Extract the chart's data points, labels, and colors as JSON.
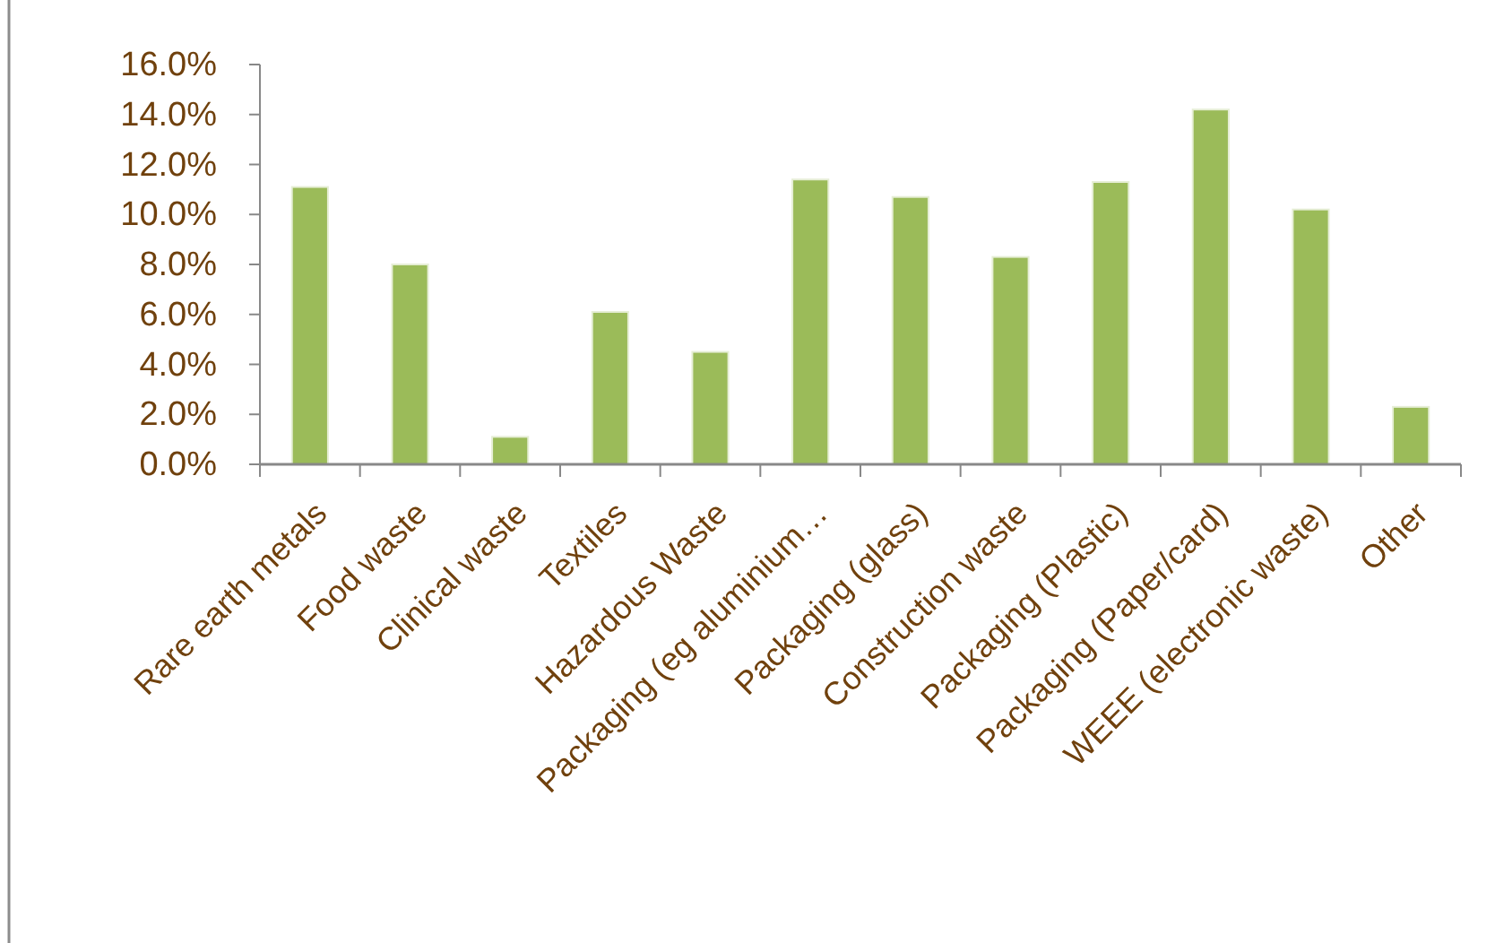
{
  "chart_data": {
    "type": "bar",
    "categories": [
      "Rare earth metals",
      "Food waste",
      "Clinical waste",
      "Textiles",
      "Hazardous Waste",
      "Packaging (eg aluminium…",
      "Packaging (glass)",
      "Construction waste",
      "Packaging (Plastic)",
      "Packaging (Paper/card)",
      "WEEE (electronic waste)",
      "Other"
    ],
    "values": [
      11.1,
      8.0,
      1.1,
      6.1,
      4.5,
      11.4,
      10.7,
      8.3,
      11.3,
      14.2,
      10.2,
      2.3
    ],
    "color": "#9bbb59",
    "ylim": [
      0,
      16
    ],
    "yticks": [
      {
        "value": 0,
        "label": "0.0%"
      },
      {
        "value": 2,
        "label": "2.0%"
      },
      {
        "value": 4,
        "label": "4.0%"
      },
      {
        "value": 6,
        "label": "6.0%"
      },
      {
        "value": 8,
        "label": "8.0%"
      },
      {
        "value": 10,
        "label": "10.0%"
      },
      {
        "value": 12,
        "label": "12.0%"
      },
      {
        "value": 14,
        "label": "14.0%"
      },
      {
        "value": 16,
        "label": "16.0%"
      }
    ],
    "grid": false
  }
}
